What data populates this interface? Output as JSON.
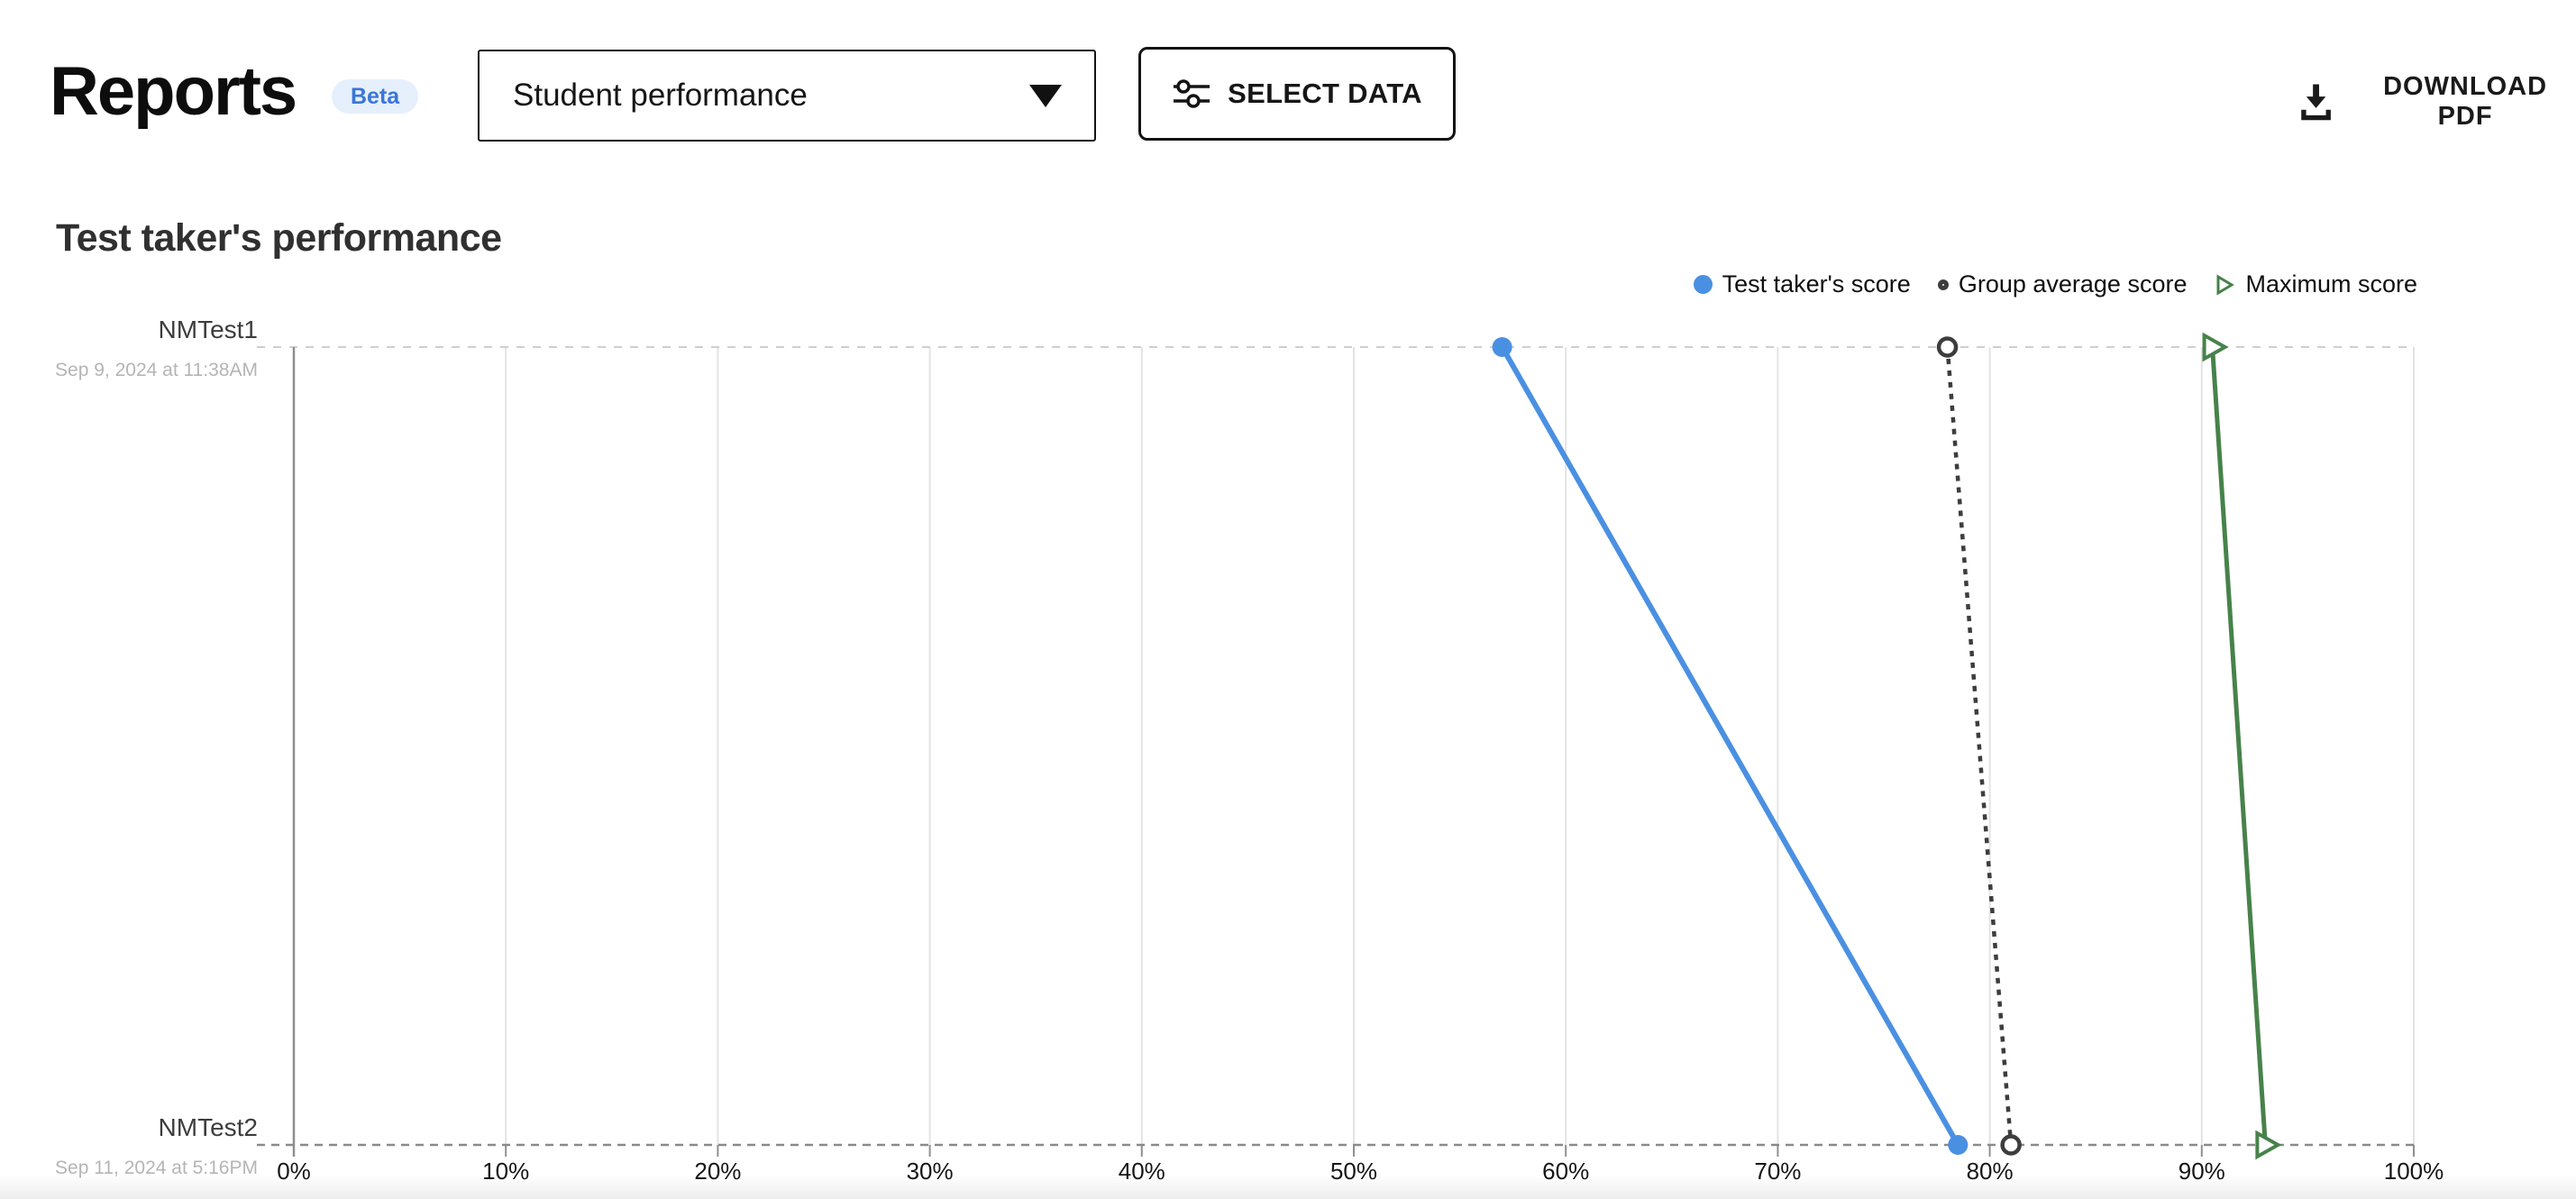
{
  "header": {
    "title": "Reports",
    "badge": "Beta",
    "report_selector": {
      "value": "Student performance"
    },
    "select_data_label": "SELECT DATA",
    "download_label": "DOWNLOAD PDF"
  },
  "section": {
    "title": "Test taker's performance"
  },
  "colors": {
    "accent_blue": "#4a90e2",
    "series_gray": "#3d3d3d",
    "series_green": "#47824a",
    "badge_bg": "#e6effc",
    "badge_text": "#3a76d8",
    "gridline": "#e3e3e3",
    "axis": "#8f8f8f"
  },
  "chart_data": {
    "type": "line",
    "title": "Test taker's performance",
    "orientation": "horizontal rows (test sessions) vs percentage score on x-axis",
    "legend_position": "top-right",
    "grid": "vertical gridlines every 10%",
    "rows": [
      {
        "label": "NMTest1",
        "date": "Sep 9, 2024 at 11:38AM"
      },
      {
        "label": "NMTest2",
        "date": "Sep 11, 2024 at 5:16PM"
      }
    ],
    "x_ticks": [
      "0%",
      "10%",
      "20%",
      "30%",
      "40%",
      "50%",
      "60%",
      "70%",
      "80%",
      "90%",
      "100%"
    ],
    "xlim": [
      0,
      100
    ],
    "series": [
      {
        "name": "Test taker's score",
        "marker": "filled-circle",
        "line": "solid",
        "color": "#4a90e2",
        "values": [
          57,
          78.5
        ]
      },
      {
        "name": "Group average score",
        "marker": "open-circle",
        "line": "dotted",
        "color": "#3d3d3d",
        "values": [
          78,
          81
        ]
      },
      {
        "name": "Maximum score",
        "marker": "open-triangle",
        "line": "solid",
        "color": "#47824a",
        "values": [
          90.5,
          93
        ]
      }
    ]
  }
}
